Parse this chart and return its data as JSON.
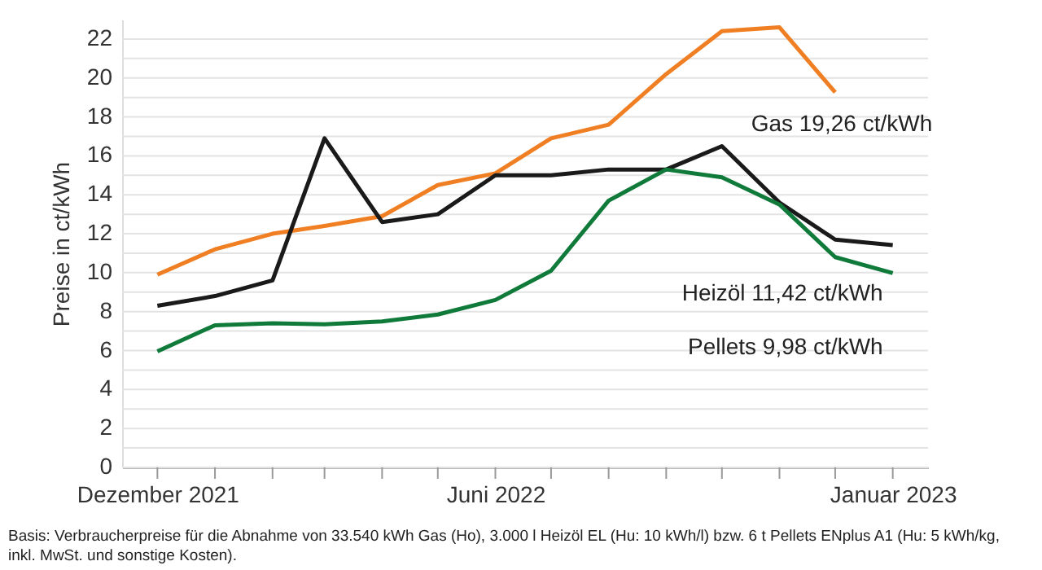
{
  "chart_data": {
    "type": "line",
    "ylabel": "Preise in ct/kWh",
    "x": [
      "2021-12",
      "2022-01",
      "2022-02",
      "2022-03",
      "2022-04",
      "2022-05",
      "2022-06",
      "2022-07",
      "2022-08",
      "2022-09",
      "2022-10",
      "2022-11",
      "2022-12",
      "2023-01"
    ],
    "series": [
      {
        "color": "#f07f24",
        "values": [
          9.9,
          11.2,
          12.0,
          12.4,
          12.9,
          14.5,
          15.1,
          16.9,
          17.6,
          20.2,
          22.4,
          22.6,
          19.26,
          null
        ]
      },
      {
        "color": "#1a1a1a",
        "values": [
          8.3,
          8.8,
          9.6,
          16.9,
          12.6,
          13.0,
          15.0,
          15.0,
          15.3,
          15.3,
          16.5,
          13.6,
          11.7,
          11.42
        ]
      },
      {
        "color": "#0f7a3a",
        "values": [
          5.96,
          7.3,
          7.4,
          7.35,
          7.5,
          7.85,
          8.6,
          10.1,
          13.7,
          15.3,
          14.9,
          13.5,
          10.8,
          9.98
        ]
      }
    ],
    "xlim": [
      "2021-11-12",
      "2023-01-20"
    ],
    "xticks": [
      {
        "value": "2021-12",
        "label": "Dezember 2021"
      },
      {
        "value": "2022-01",
        "label": null
      },
      {
        "value": "2022-02",
        "label": null
      },
      {
        "value": "2022-03",
        "label": null
      },
      {
        "value": "2022-04",
        "label": null
      },
      {
        "value": "2022-05",
        "label": null
      },
      {
        "value": "2022-06",
        "label": "Juni 2022"
      },
      {
        "value": "2022-07",
        "label": null
      },
      {
        "value": "2022-08",
        "label": null
      },
      {
        "value": "2022-09",
        "label": null
      },
      {
        "value": "2022-10",
        "label": null
      },
      {
        "value": "2022-11",
        "label": null
      },
      {
        "value": "2022-12",
        "label": null
      },
      {
        "value": "2023-01",
        "label": "Januar 2023"
      }
    ],
    "ylim": [
      0,
      23
    ],
    "yticks": [
      0,
      {
        "value": 1,
        "label": null
      },
      2,
      {
        "value": 3,
        "label": null
      },
      4,
      {
        "value": 5,
        "label": null
      },
      6,
      {
        "value": 7,
        "label": null
      },
      8,
      {
        "value": 9,
        "label": null
      },
      10,
      {
        "value": 11,
        "label": null
      },
      12,
      {
        "value": 13,
        "label": null
      },
      14,
      {
        "value": 15,
        "label": null
      },
      16,
      {
        "value": 17,
        "label": null
      },
      18,
      {
        "value": 19,
        "label": null
      },
      20,
      {
        "value": 21,
        "label": null
      },
      22
    ],
    "grid": "y",
    "marker": "none",
    "line_style": "solid",
    "annotations": [
      {
        "text": "Gas 19,26 ct/kWh",
        "x": "2022-12",
        "y": 19.26
      },
      {
        "text": "Heizöl 11,42 ct/kWh",
        "x": "2023-01",
        "y": 11.42
      },
      {
        "text": "Pellets 9,98 ct/kWh",
        "x": "2023-01",
        "y": 9.98
      },
      "Basis: Verbraucherpreise für die Abnahme von 33.540 kWh Gas (Ho), 3.000 l Heizöl EL (Hu: 10 kWh/l) bzw. 6 t Pellets ENplus A1 (Hu: 5 kWh/kg,",
      "inkl. MwSt. und sonstige Kosten)."
    ]
  }
}
